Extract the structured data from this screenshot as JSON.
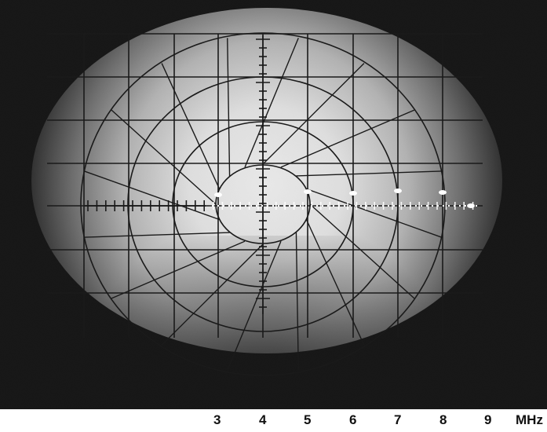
{
  "scale": {
    "labels": [
      "3",
      "4",
      "5",
      "6",
      "7",
      "8",
      "9"
    ],
    "unit": "MHz"
  },
  "colors": {
    "screen": "#000000",
    "glow": "#ffffff",
    "graticule": "#1a1a1a",
    "scale_text": "#111111"
  }
}
